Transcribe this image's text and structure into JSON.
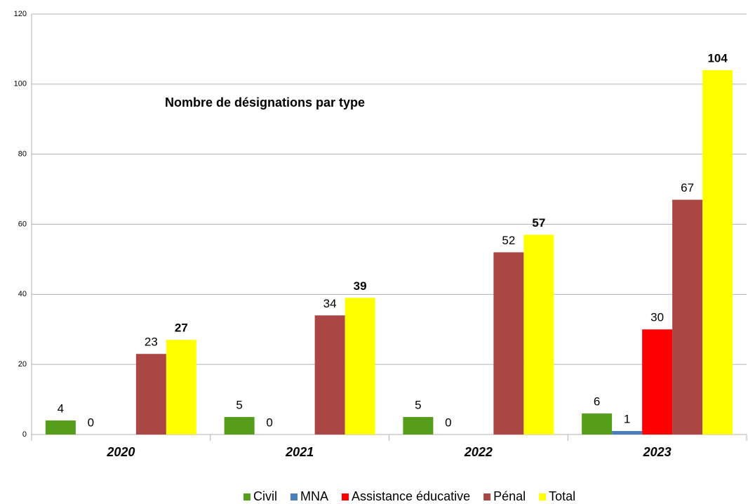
{
  "chart_data": {
    "type": "bar",
    "title": "Nombre de désignations par type",
    "categories": [
      "2020",
      "2021",
      "2022",
      "2023"
    ],
    "series": [
      {
        "name": "Civil",
        "color": "#579d1c",
        "values": [
          4,
          5,
          5,
          6
        ]
      },
      {
        "name": "MNA",
        "color": "#4a7ebb",
        "values": [
          0,
          0,
          0,
          1
        ]
      },
      {
        "name": "Assistance éducative",
        "color": "#ff0000",
        "values": [
          null,
          null,
          null,
          30
        ]
      },
      {
        "name": "Pénal",
        "color": "#aa4643",
        "values": [
          23,
          34,
          52,
          67
        ]
      },
      {
        "name": "Total",
        "color": "#ffff00",
        "values": [
          27,
          39,
          57,
          104
        ]
      }
    ],
    "ylim": [
      0,
      120
    ],
    "yticks": [
      0,
      20,
      40,
      60,
      80,
      100,
      120
    ],
    "grid": true,
    "legend": "bottom"
  }
}
